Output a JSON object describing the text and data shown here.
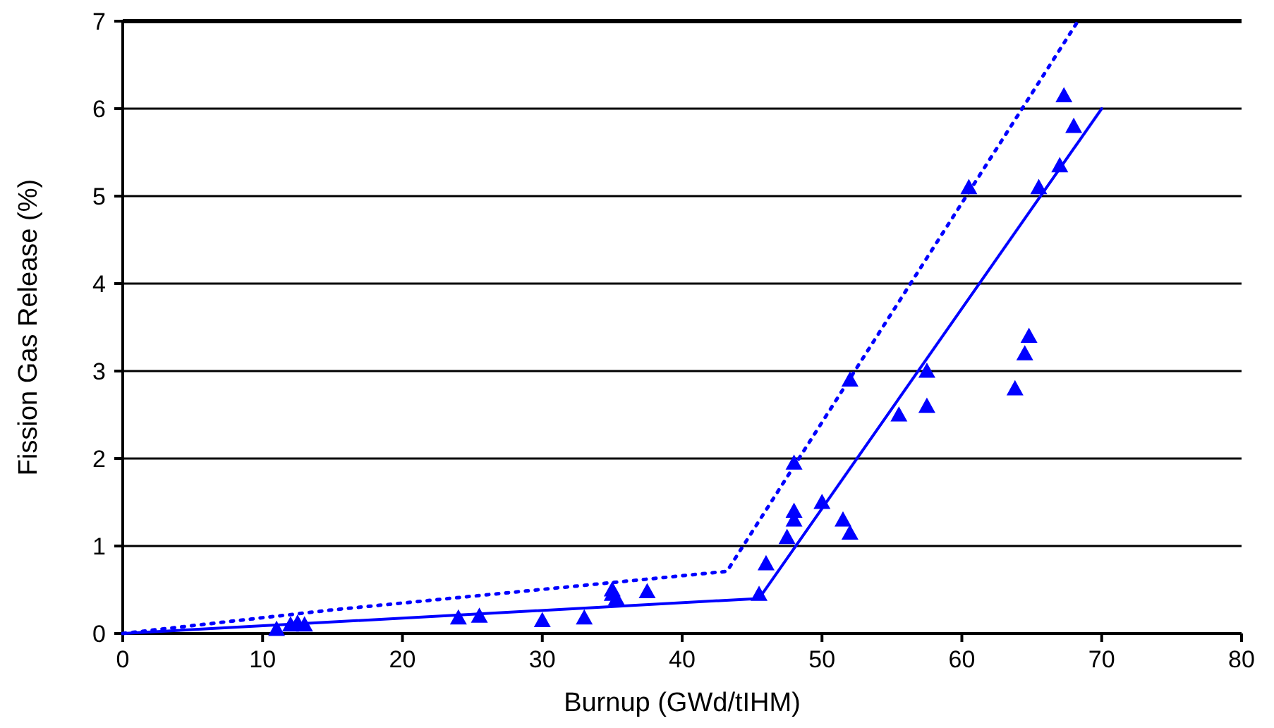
{
  "chart_data": {
    "type": "scatter",
    "xlabel": "Burnup (GWd/tIHM)",
    "ylabel": "Fission Gas Release (%)",
    "xlim": [
      0,
      80
    ],
    "ylim": [
      0,
      7
    ],
    "xticks": [
      0,
      10,
      20,
      30,
      40,
      50,
      60,
      70,
      80
    ],
    "yticks": [
      0,
      1,
      2,
      3,
      4,
      5,
      6,
      7
    ],
    "grid": "y",
    "series": [
      {
        "color": "#0000ff",
        "marker": "triangle",
        "x": [
          11,
          12,
          12.5,
          13,
          24,
          25.5,
          30,
          33,
          35,
          35,
          35.3,
          37.5,
          45.5,
          46,
          47.5,
          48,
          48,
          48,
          50,
          51.5,
          52,
          52,
          55.5,
          57.5,
          57.5,
          60.5,
          63.8,
          64.5,
          64.8,
          65.5,
          67,
          67.3,
          68
        ],
        "values": [
          0.05,
          0.1,
          0.12,
          0.1,
          0.18,
          0.2,
          0.15,
          0.18,
          0.5,
          0.45,
          0.4,
          0.48,
          0.45,
          0.8,
          1.1,
          1.4,
          1.3,
          1.95,
          1.5,
          1.3,
          1.15,
          2.9,
          2.5,
          3.0,
          2.6,
          5.1,
          2.8,
          3.2,
          3.4,
          5.1,
          5.35,
          6.15,
          5.8
        ]
      },
      {
        "type": "line",
        "color": "#0000ff",
        "marker": "none",
        "line_style": "solid",
        "x": [
          0,
          45.5,
          70
        ],
        "values": [
          0,
          0.4,
          6
        ]
      },
      {
        "type": "line",
        "color": "#0000ff",
        "marker": "none",
        "line_style": "dotted",
        "x": [
          0,
          15,
          43.2,
          68.3
        ],
        "values": [
          0,
          0.27,
          0.71,
          7
        ]
      }
    ]
  }
}
